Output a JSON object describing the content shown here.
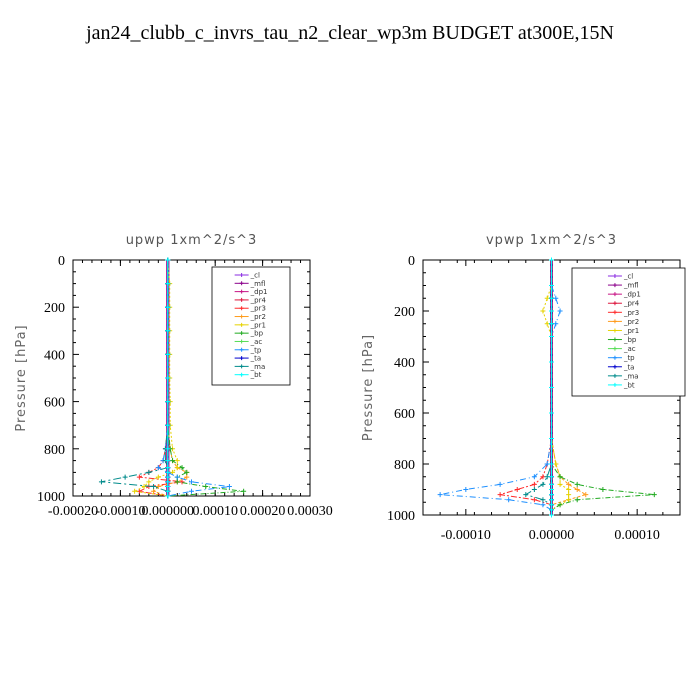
{
  "title": "jan24_clubb_c_invrs_tau_n2_clear_wp3m  BUDGET at300E,15N",
  "chart_data": [
    {
      "type": "line",
      "title": "upwp   1xm^2/s^3",
      "ylabel": "Pressure [hPa]",
      "xlabel": "",
      "xlim": [
        -0.0002,
        0.0003
      ],
      "ylim": [
        1000,
        0
      ],
      "xticks": [
        -0.0002,
        -0.0001,
        0.0,
        0.0001,
        0.0002,
        0.0003
      ],
      "xtick_labels": [
        "-0.00020",
        "-0.00010",
        "0.000000",
        "0.00010",
        "0.00020",
        "0.00030"
      ],
      "yticks": [
        0,
        200,
        400,
        600,
        800,
        1000
      ],
      "ytick_labels": [
        "0",
        "200",
        "400",
        "600",
        "800",
        "1000"
      ],
      "legend_position": "upper-right",
      "pressure": [
        0,
        100,
        200,
        300,
        400,
        500,
        600,
        700,
        800,
        850,
        880,
        900,
        920,
        940,
        960,
        980,
        1000
      ],
      "series": [
        {
          "name": "_cl",
          "color": "#8a2be2",
          "values": [
            0,
            0,
            0,
            0,
            0,
            0,
            0,
            0,
            0,
            0,
            0,
            0,
            0,
            0,
            0,
            0,
            0
          ]
        },
        {
          "name": "_mfl",
          "color": "#8b008b",
          "values": [
            0,
            0,
            0,
            0,
            0,
            0,
            0,
            0,
            0,
            0,
            0,
            0,
            0,
            0,
            0,
            0,
            0
          ]
        },
        {
          "name": "_dp1",
          "color": "#c71585",
          "values": [
            0,
            0,
            0,
            0,
            0,
            0,
            0,
            0,
            0,
            0,
            0,
            0,
            0,
            0,
            0,
            0,
            0
          ]
        },
        {
          "name": "_pr4",
          "color": "#dc143c",
          "values": [
            0,
            0,
            0,
            0,
            0,
            0,
            0,
            0,
            0,
            0,
            0,
            0,
            0,
            0,
            0,
            0,
            0
          ]
        },
        {
          "name": "_pr3",
          "color": "#ff2a2a",
          "values": [
            0,
            0,
            0,
            0,
            0,
            0,
            0,
            0,
            -5e-06,
            -1e-05,
            -2e-05,
            -4e-05,
            -6e-05,
            3e-05,
            -4e-05,
            -6e-05,
            0
          ]
        },
        {
          "name": "_pr2",
          "color": "#ff9a1a",
          "values": [
            0,
            0,
            0,
            0,
            0,
            0,
            0,
            0,
            5e-06,
            1e-05,
            2e-05,
            4e-05,
            4e-05,
            2e-05,
            -2e-05,
            -3e-05,
            0
          ]
        },
        {
          "name": "_pr1",
          "color": "#e6d200",
          "values": [
            0,
            4e-06,
            4e-06,
            4e-06,
            4e-06,
            4e-06,
            5e-06,
            5e-06,
            1e-05,
            2e-05,
            2e-05,
            1e-05,
            -2e-05,
            -4e-05,
            -5e-05,
            -7e-05,
            0
          ]
        },
        {
          "name": "_bp",
          "color": "#22aa22",
          "values": [
            0,
            0,
            0,
            0,
            0,
            0,
            0,
            0,
            5e-06,
            1e-05,
            3e-05,
            4e-05,
            2e-05,
            2e-05,
            8e-05,
            0.00016,
            0
          ]
        },
        {
          "name": "_ac",
          "color": "#55dd55",
          "values": [
            0,
            0,
            0,
            0,
            0,
            0,
            0,
            0,
            0,
            0,
            0,
            0,
            0,
            0,
            0,
            0,
            0
          ]
        },
        {
          "name": "_tp",
          "color": "#1e90ff",
          "values": [
            0,
            0,
            0,
            0,
            0,
            0,
            0,
            0,
            -5e-06,
            -1e-05,
            -2e-05,
            0,
            2e-05,
            5e-05,
            0.00013,
            5e-05,
            0
          ]
        },
        {
          "name": "_ta",
          "color": "#0000cd",
          "values": [
            0,
            0,
            0,
            0,
            0,
            0,
            0,
            0,
            0,
            0,
            0,
            0,
            0,
            0,
            0,
            0,
            0
          ]
        },
        {
          "name": "_ma",
          "color": "#008b8b",
          "values": [
            0,
            0,
            0,
            0,
            0,
            0,
            0,
            0,
            -5e-06,
            -5e-06,
            0,
            -4e-05,
            -9e-05,
            -0.00014,
            -3e-05,
            0,
            0
          ]
        },
        {
          "name": "_bt",
          "color": "#00ffff",
          "values": [
            0,
            0,
            0,
            0,
            0,
            0,
            0,
            0,
            0,
            0,
            0,
            0,
            0,
            0,
            0,
            0,
            0
          ]
        }
      ]
    },
    {
      "type": "line",
      "title": "vpwp   1xm^2/s^3",
      "ylabel": "Pressure [hPa]",
      "xlabel": "",
      "xlim": [
        -0.00015,
        0.00015
      ],
      "ylim": [
        1000,
        0
      ],
      "xticks": [
        -0.0001,
        0.0,
        0.0001
      ],
      "xtick_labels": [
        "-0.00010",
        "0.00000",
        "0.00010"
      ],
      "yticks": [
        0,
        200,
        400,
        600,
        800,
        1000
      ],
      "ytick_labels": [
        "0",
        "200",
        "400",
        "600",
        "800",
        "1000"
      ],
      "legend_position": "upper-right",
      "pressure": [
        0,
        100,
        150,
        200,
        250,
        300,
        400,
        500,
        600,
        700,
        800,
        850,
        880,
        900,
        920,
        940,
        960,
        980,
        1000
      ],
      "series": [
        {
          "name": "_cl",
          "color": "#8a2be2",
          "values": [
            0,
            0,
            0,
            0,
            0,
            0,
            0,
            0,
            0,
            0,
            0,
            0,
            0,
            0,
            0,
            0,
            0,
            0,
            0
          ]
        },
        {
          "name": "_mfl",
          "color": "#8b008b",
          "values": [
            0,
            0,
            0,
            0,
            0,
            0,
            0,
            0,
            0,
            0,
            0,
            0,
            0,
            0,
            0,
            0,
            0,
            0,
            0
          ]
        },
        {
          "name": "_dp1",
          "color": "#c71585",
          "values": [
            0,
            0,
            0,
            0,
            0,
            0,
            0,
            0,
            0,
            0,
            0,
            0,
            0,
            0,
            0,
            0,
            0,
            0,
            0
          ]
        },
        {
          "name": "_pr4",
          "color": "#dc143c",
          "values": [
            0,
            0,
            0,
            0,
            0,
            0,
            0,
            0,
            0,
            0,
            0,
            0,
            0,
            0,
            0,
            0,
            0,
            0,
            0
          ]
        },
        {
          "name": "_pr3",
          "color": "#ff2a2a",
          "values": [
            0,
            0,
            0,
            0,
            0,
            0,
            0,
            0,
            0,
            0,
            -5e-06,
            -1e-05,
            -2e-05,
            -4e-05,
            -6e-05,
            -2e-05,
            0,
            0,
            0
          ]
        },
        {
          "name": "_pr2",
          "color": "#ff9a1a",
          "values": [
            0,
            0,
            0,
            0,
            0,
            0,
            0,
            0,
            0,
            0,
            5e-06,
            1e-05,
            2e-05,
            3e-05,
            4e-05,
            2e-05,
            0,
            0,
            0
          ]
        },
        {
          "name": "_pr1",
          "color": "#e6d200",
          "values": [
            0,
            0,
            -5e-06,
            -1e-05,
            -5e-06,
            0,
            0,
            0,
            0,
            0,
            5e-06,
            1e-05,
            1e-05,
            2e-05,
            2e-05,
            2e-05,
            1e-05,
            0,
            0
          ]
        },
        {
          "name": "_bp",
          "color": "#22aa22",
          "values": [
            0,
            0,
            0,
            0,
            0,
            0,
            0,
            0,
            0,
            0,
            0,
            1e-05,
            3e-05,
            6e-05,
            0.00012,
            3e-05,
            1e-05,
            0,
            0
          ]
        },
        {
          "name": "_ac",
          "color": "#55dd55",
          "values": [
            0,
            0,
            0,
            0,
            0,
            0,
            0,
            0,
            0,
            0,
            0,
            0,
            0,
            0,
            0,
            0,
            0,
            0,
            0
          ]
        },
        {
          "name": "_tp",
          "color": "#1e90ff",
          "values": [
            0,
            0,
            5e-06,
            1e-05,
            5e-06,
            0,
            0,
            0,
            0,
            0,
            -5e-06,
            -2e-05,
            -6e-05,
            -0.0001,
            -0.00013,
            -5e-05,
            -1e-05,
            0,
            0
          ]
        },
        {
          "name": "_ta",
          "color": "#0000cd",
          "values": [
            0,
            0,
            0,
            0,
            0,
            0,
            0,
            0,
            0,
            0,
            0,
            0,
            0,
            0,
            0,
            0,
            0,
            0,
            0
          ]
        },
        {
          "name": "_ma",
          "color": "#008b8b",
          "values": [
            0,
            0,
            0,
            0,
            0,
            0,
            0,
            0,
            0,
            0,
            0,
            -5e-06,
            -1e-05,
            -2e-05,
            -3e-05,
            -1e-05,
            0,
            0,
            0
          ]
        },
        {
          "name": "_bt",
          "color": "#00ffff",
          "values": [
            0,
            0,
            0,
            0,
            0,
            0,
            0,
            0,
            0,
            0,
            0,
            0,
            0,
            0,
            0,
            0,
            0,
            0,
            0
          ]
        }
      ]
    }
  ]
}
